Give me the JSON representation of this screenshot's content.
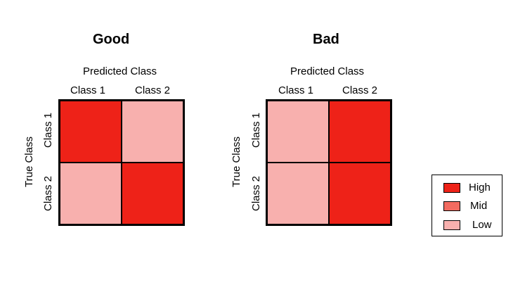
{
  "panels": [
    {
      "title": "Good",
      "x_axis_title": "Predicted Class",
      "y_axis_title": "True Class",
      "col_labels": [
        "Class 1",
        "Class 2"
      ],
      "row_labels": [
        "Class 1",
        "Class 2"
      ],
      "cells": [
        [
          "High",
          "Low"
        ],
        [
          "Low",
          "High"
        ]
      ]
    },
    {
      "title": "Bad",
      "x_axis_title": "Predicted Class",
      "y_axis_title": "True Class",
      "col_labels": [
        "Class 1",
        "Class 2"
      ],
      "row_labels": [
        "Class 1",
        "Class 2"
      ],
      "cells": [
        [
          "Low",
          "High"
        ],
        [
          "Low",
          "High"
        ]
      ]
    }
  ],
  "legend": {
    "items": [
      {
        "label": "High",
        "color": "#ee2218"
      },
      {
        "label": "Mid",
        "color": "#f26b60"
      },
      {
        "label": "Low",
        "color": "#f8b0ae"
      }
    ]
  }
}
